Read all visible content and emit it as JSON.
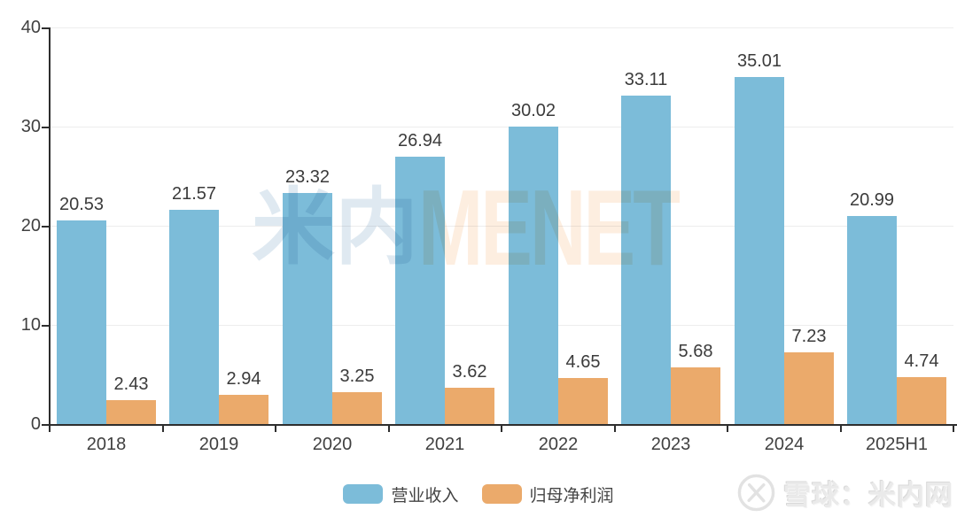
{
  "chart_data": {
    "type": "bar",
    "categories": [
      "2018",
      "2019",
      "2020",
      "2021",
      "2022",
      "2023",
      "2024",
      "2025H1"
    ],
    "series": [
      {
        "name": "营业收入",
        "color": "#7CBCD9",
        "values": [
          20.53,
          21.57,
          23.32,
          26.94,
          30.02,
          33.11,
          35.01,
          20.99
        ]
      },
      {
        "name": "归母净利润",
        "color": "#EBAA6B",
        "values": [
          2.43,
          2.94,
          3.25,
          3.62,
          4.65,
          5.68,
          7.23,
          4.74
        ]
      }
    ],
    "title": "",
    "xlabel": "",
    "ylabel": "",
    "ylim": [
      0,
      40
    ],
    "yticks": [
      0,
      10,
      20,
      30,
      40
    ],
    "grid": true,
    "legend_position": "bottom",
    "value_labels": true,
    "value_label_decimals": 2
  },
  "watermark": {
    "cjk": "米内",
    "latin": "MENET",
    "cjk_color": "#DFE9F1",
    "latin_color": "#FDEEE0"
  },
  "attribution": {
    "label": "雪球：米内网",
    "icon": "xueqiu-logo"
  },
  "style": {
    "axis_color": "#2E2E2E",
    "grid_color": "#EDEDED",
    "tick_label_color": "#404040",
    "value_label_color": "#3B3B3B",
    "legend_text_color": "#444444",
    "background": "#FFFFFF"
  }
}
